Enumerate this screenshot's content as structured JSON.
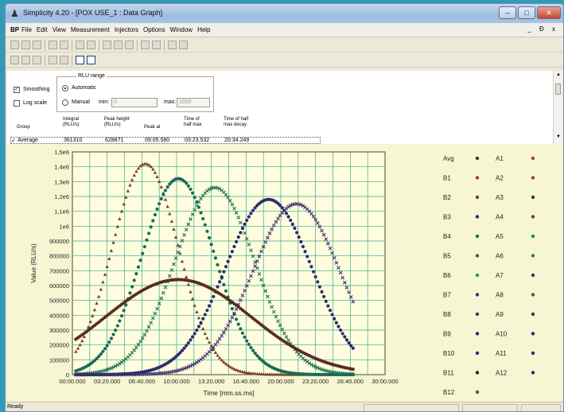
{
  "window": {
    "title": "Simplicity 4.20  - [POX USE_1 : Data Graph]",
    "app_icon": "simplicity-logo-icon"
  },
  "menubar": {
    "logo": "BP",
    "items": [
      "File",
      "Edit",
      "View",
      "Measurement",
      "Injectors",
      "Options",
      "Window",
      "Help"
    ],
    "mdi_controls": [
      "_",
      "Ɖ",
      "x"
    ]
  },
  "options": {
    "smoothing_label": "Smoothing",
    "smoothing_checked": true,
    "logscale_label": "Log scale",
    "logscale_checked": false,
    "rlu_group_label": "RLU range",
    "automatic_label": "Automatic",
    "manual_label": "Manual",
    "min_label": "min:",
    "min_value": "0",
    "max_label": "max:",
    "max_value": "1000"
  },
  "table": {
    "headers": {
      "group": "Group",
      "integral": "Integral\n(RLU/s)",
      "peak_height": "Peak height\n(RLU/s)",
      "peak_at": "Peak at",
      "half_max": "Time of\nhalf max",
      "half_decay": "Time of half\nmax decay"
    },
    "row": {
      "checked": true,
      "group": "Average",
      "integral": "361310",
      "peak_height": "628871",
      "peak_at": "09:05.580",
      "half_max": "03:23.532",
      "half_decay": "20:34.249"
    }
  },
  "legend": {
    "left": [
      "Avg",
      "B1",
      "B2",
      "B3",
      "B4",
      "B5",
      "B6",
      "B7",
      "B8",
      "B9",
      "B10",
      "B11",
      "B12"
    ],
    "right": [
      "A1",
      "A2",
      "A3",
      "A4",
      "A5",
      "A6",
      "A7",
      "A8",
      "A9",
      "A10",
      "A11",
      "A12"
    ]
  },
  "chart_data": {
    "type": "scatter",
    "title": "",
    "xlabel": "Time [mm.ss.ms]",
    "ylabel": "Value (RLU/s)",
    "ylim": [
      0,
      1500000
    ],
    "xlim_seconds": [
      0,
      1800
    ],
    "yticks": [
      "1,5e6",
      "1,4e6",
      "1,3e6",
      "1,2e6",
      "1,1e6",
      "1e6",
      "900000",
      "800000",
      "700000",
      "600000",
      "500000",
      "400000",
      "300000",
      "200000",
      "100000",
      "0"
    ],
    "xticks": [
      "00:00.000",
      "03:20.000",
      "06:40.000",
      "10:00.000",
      "13:20.000",
      "16:40.000",
      "20:00.000",
      "23:20.000",
      "26:40.000",
      "30:00.000"
    ],
    "grid": true,
    "series": [
      {
        "color": "#7a3b2e",
        "peak_time_s": 420,
        "peak_value": 1420000,
        "width_s": 190,
        "marker": "triangle",
        "start_s": 20
      },
      {
        "color": "#1a6b56",
        "peak_time_s": 610,
        "peak_value": 1320000,
        "width_s": 210,
        "marker": "circle",
        "start_s": 20
      },
      {
        "color": "#1e6f52",
        "peak_time_s": 820,
        "peak_value": 1260000,
        "width_s": 230,
        "marker": "x",
        "start_s": 20
      },
      {
        "color": "#2e2a6e",
        "peak_time_s": 1130,
        "peak_value": 1180000,
        "width_s": 250,
        "marker": "circle",
        "start_s": 20
      },
      {
        "color": "#3b2f6e",
        "peak_time_s": 1290,
        "peak_value": 1150000,
        "width_s": 250,
        "marker": "x",
        "start_s": 20
      },
      {
        "color": "#5a2a22",
        "peak_time_s": 610,
        "peak_value": 640000,
        "width_s": 420,
        "marker": "circle",
        "start_s": 20
      }
    ]
  },
  "status": {
    "text": "Ready"
  }
}
